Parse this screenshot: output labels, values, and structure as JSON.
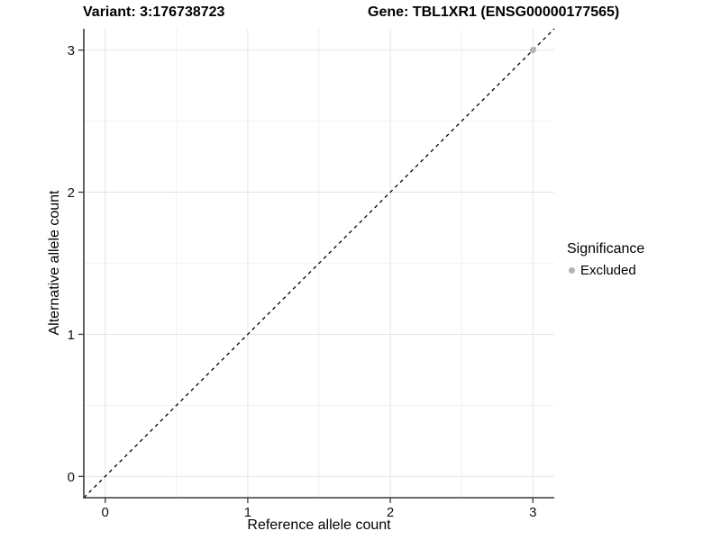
{
  "chart_data": {
    "type": "scatter",
    "titles": {
      "left": "Variant: 3:176738723",
      "right": "Gene: TBL1XR1 (ENSG00000177565)"
    },
    "xlabel": "Reference allele count",
    "ylabel": "Alternative allele count",
    "xlim": [
      -0.15,
      3.15
    ],
    "ylim": [
      -0.15,
      3.15
    ],
    "x_ticks": [
      0,
      1,
      2,
      3
    ],
    "y_ticks": [
      0,
      1,
      2,
      3
    ],
    "x_minor_ticks": [
      0.5,
      1.5,
      2.5
    ],
    "y_minor_ticks": [
      0.5,
      1.5,
      2.5
    ],
    "grid": "major+minor",
    "series": [
      {
        "name": "Excluded",
        "color": "#b4b4b4",
        "points": [
          {
            "x": 3,
            "y": 3
          }
        ]
      }
    ],
    "reference_line": {
      "type": "identity",
      "equation": "y = x",
      "style": "dashed",
      "color": "#000000"
    },
    "legend": {
      "title": "Significance",
      "position": "right",
      "items": [
        {
          "label": "Excluded",
          "color": "#b4b4b4"
        }
      ]
    }
  },
  "colors": {
    "background": "#ffffff",
    "axis": "#3c3c3c",
    "grid_major": "#e4e4e4",
    "grid_minor": "#f1f1f1",
    "tick_text": "#111111",
    "excluded_gray": "#b4b4b4"
  }
}
